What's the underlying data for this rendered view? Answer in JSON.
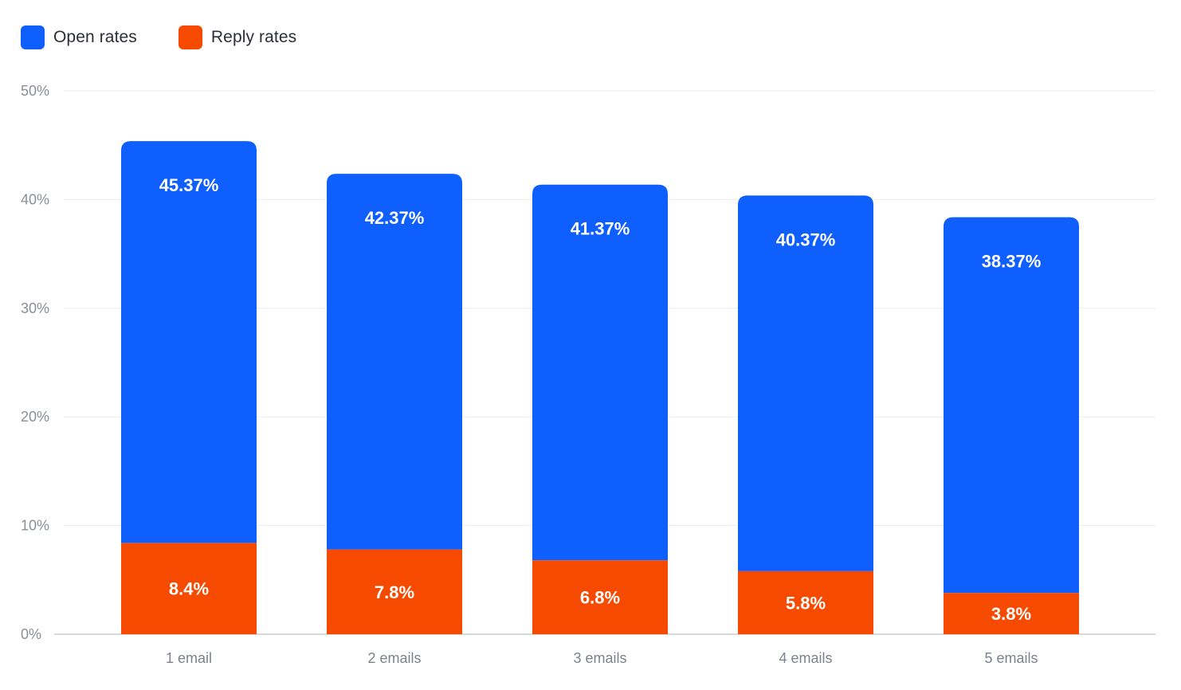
{
  "legend": {
    "items": [
      {
        "label": "Open rates",
        "color": "#0f5fff"
      },
      {
        "label": "Reply rates",
        "color": "#f54a00"
      }
    ]
  },
  "chart_data": {
    "type": "bar",
    "stacked": true,
    "categories": [
      "1 email",
      "2 emails",
      "3 emails",
      "4 emails",
      "5 emails"
    ],
    "series": [
      {
        "name": "Open rates",
        "color": "#0f5fff",
        "values": [
          45.37,
          42.37,
          41.37,
          40.37,
          38.37
        ],
        "labels": [
          "45.37%",
          "42.37%",
          "41.37%",
          "40.37%",
          "38.37%"
        ]
      },
      {
        "name": "Reply rates",
        "color": "#f54a00",
        "values": [
          8.4,
          7.8,
          6.8,
          5.8,
          3.8
        ],
        "labels": [
          "8.4%",
          "7.8%",
          "6.8%",
          "5.8%",
          "3.8%"
        ]
      }
    ],
    "y_ticks": [
      "0%",
      "10%",
      "20%",
      "30%",
      "40%",
      "50%"
    ],
    "ylim": [
      0,
      50
    ],
    "grid": true,
    "legend_position": "top-left",
    "title": "",
    "xlabel": "",
    "ylabel": ""
  }
}
